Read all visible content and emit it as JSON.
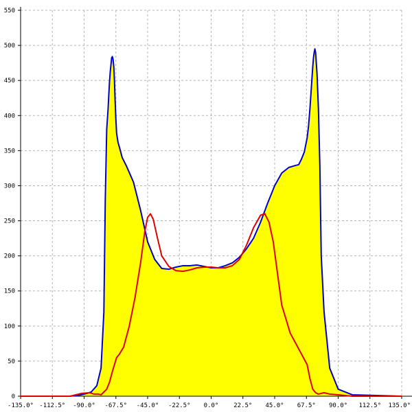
{
  "chart_data": {
    "type": "area",
    "title": "",
    "xlabel": "",
    "ylabel": "",
    "xlim": [
      -135,
      135
    ],
    "ylim": [
      0,
      550
    ],
    "grid": true,
    "x_ticks": [
      -135,
      -112.5,
      -90,
      -67.5,
      -45,
      -22.5,
      0,
      22.5,
      45,
      67.5,
      90,
      112.5,
      135
    ],
    "x_tick_labels": [
      "-135.0°",
      "-112.5°",
      "-90.0°",
      "-67.5°",
      "-45.0°",
      "-22.5°",
      "0.0°",
      "22.5°",
      "45.0°",
      "67.5°",
      "90.0°",
      "112.5°",
      "135.0°"
    ],
    "y_ticks": [
      0,
      50,
      100,
      150,
      200,
      250,
      300,
      350,
      400,
      450,
      500,
      550
    ],
    "y_tick_labels": [
      "0",
      "50",
      "100",
      "150",
      "200",
      "250",
      "300",
      "350",
      "400",
      "450",
      "500",
      "550"
    ],
    "colors": {
      "fill": "#ffff00",
      "blue": "#0000cc",
      "red": "#e00000",
      "grid": "#b4b4b4",
      "axis": "#000000"
    },
    "series": [
      {
        "color": "#0000cc",
        "filled": true,
        "x": [
          -135,
          -100,
          -92,
          -88,
          -85,
          -81,
          -78,
          -76,
          -75,
          -74,
          -73,
          -72.5,
          -72,
          -71.5,
          -71,
          -70.5,
          -70,
          -69.5,
          -69,
          -68.5,
          -68,
          -67.5,
          -67,
          -66,
          -65,
          -63,
          -60,
          -55,
          -50,
          -45,
          -40,
          -35,
          -30,
          -25,
          -20,
          -15,
          -10,
          -5,
          0,
          5,
          10,
          15,
          20,
          25,
          30,
          35,
          40,
          45,
          50,
          55,
          60,
          62,
          64,
          66,
          68,
          69,
          70,
          71,
          72,
          72.5,
          73,
          73.5,
          74,
          75,
          76,
          77,
          78,
          80,
          84,
          90,
          100,
          135
        ],
        "y": [
          0,
          0,
          2,
          4,
          6,
          15,
          40,
          120,
          280,
          380,
          410,
          430,
          448,
          462,
          472,
          482,
          484,
          480,
          470,
          450,
          420,
          395,
          375,
          362,
          355,
          340,
          328,
          305,
          265,
          220,
          195,
          182,
          181,
          184,
          186,
          186,
          187,
          185,
          183,
          183,
          186,
          190,
          198,
          210,
          225,
          248,
          275,
          300,
          318,
          326,
          329,
          330,
          338,
          348,
          368,
          385,
          410,
          440,
          470,
          482,
          490,
          495,
          490,
          460,
          410,
          330,
          200,
          120,
          40,
          10,
          2,
          0
        ]
      },
      {
        "color": "#e00000",
        "filled": false,
        "x": [
          -135,
          -100,
          -92,
          -86,
          -83,
          -80,
          -78,
          -76,
          -74,
          -72,
          -70,
          -67,
          -65,
          -62,
          -58,
          -54,
          -50,
          -47,
          -45,
          -43,
          -41,
          -38,
          -35,
          -30,
          -25,
          -20,
          -15,
          -10,
          -5,
          0,
          5,
          10,
          15,
          20,
          25,
          30,
          35,
          38,
          41,
          44,
          46,
          48,
          50,
          53,
          56,
          60,
          64,
          68,
          70,
          72,
          74,
          76,
          78,
          80,
          84,
          90,
          95,
          100,
          135
        ],
        "y": [
          0,
          0,
          4,
          5,
          3,
          3,
          2,
          6,
          10,
          20,
          35,
          55,
          60,
          70,
          100,
          140,
          190,
          235,
          255,
          260,
          252,
          225,
          200,
          185,
          179,
          178,
          180,
          183,
          184,
          184,
          183,
          183,
          186,
          195,
          215,
          240,
          258,
          260,
          248,
          220,
          190,
          160,
          130,
          110,
          90,
          75,
          60,
          45,
          25,
          10,
          5,
          3,
          4,
          5,
          3,
          2,
          1,
          0,
          0
        ]
      }
    ]
  }
}
